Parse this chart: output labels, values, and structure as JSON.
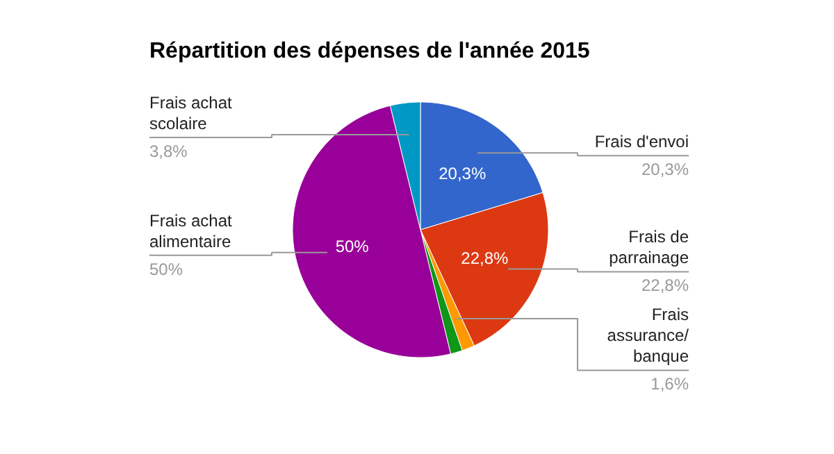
{
  "chart_data": {
    "type": "pie",
    "title": "Répartition des dépenses de l'année 2015",
    "categories": [
      "Frais d'envoi",
      "Frais de parrainage",
      "Frais assurance/ banque",
      null,
      "Frais achat alimentaire",
      "Frais achat scolaire"
    ],
    "values": [
      20.3,
      22.8,
      1.6,
      1.5,
      50,
      3.8
    ],
    "colors": [
      "#3366cc",
      "#dc3912",
      "#ff9900",
      "#109618",
      "#990099",
      "#0099c6"
    ],
    "value_labels": [
      "20,3%",
      "22,8%",
      "1,6%",
      null,
      "50%",
      "3,8%"
    ]
  }
}
